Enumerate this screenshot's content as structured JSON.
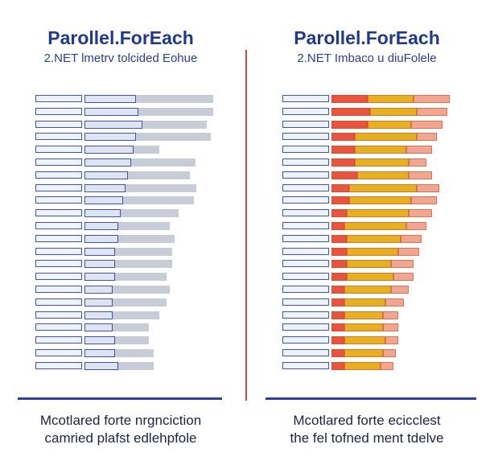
{
  "left": {
    "title": "Parollel.ForEach",
    "subtitle": "2.NET lmetrv tolcided Eohue",
    "caption_line1": "Mcotlared forte nrgnciction",
    "caption_line2": "camried plafst edlehpfole",
    "colors": {
      "outline": "#3b55b0",
      "fill": "#c7ccd6"
    },
    "rows": [
      {
        "navy": 0.4,
        "gray": 0.6
      },
      {
        "navy": 0.42,
        "gray": 0.58
      },
      {
        "navy": 0.45,
        "gray": 0.5
      },
      {
        "navy": 0.4,
        "gray": 0.58
      },
      {
        "navy": 0.38,
        "gray": 0.2
      },
      {
        "navy": 0.36,
        "gray": 0.5
      },
      {
        "navy": 0.34,
        "gray": 0.48
      },
      {
        "navy": 0.32,
        "gray": 0.55
      },
      {
        "navy": 0.3,
        "gray": 0.55
      },
      {
        "navy": 0.28,
        "gray": 0.45
      },
      {
        "navy": 0.26,
        "gray": 0.4
      },
      {
        "navy": 0.26,
        "gray": 0.44
      },
      {
        "navy": 0.24,
        "gray": 0.44
      },
      {
        "navy": 0.24,
        "gray": 0.44
      },
      {
        "navy": 0.24,
        "gray": 0.4
      },
      {
        "navy": 0.22,
        "gray": 0.44
      },
      {
        "navy": 0.22,
        "gray": 0.42
      },
      {
        "navy": 0.22,
        "gray": 0.36
      },
      {
        "navy": 0.22,
        "gray": 0.28
      },
      {
        "navy": 0.24,
        "gray": 0.26
      },
      {
        "navy": 0.24,
        "gray": 0.3
      },
      {
        "navy": 0.26,
        "gray": 0.28
      }
    ]
  },
  "right": {
    "title": "Parollel.ForEach",
    "subtitle": "2.NET Imbaco u diuFolele",
    "caption_line1": "Mcotlared forte ecicclest",
    "caption_line2": "the fel tofned ment tdelve",
    "colors": {
      "outline": "#3b55b0",
      "red": "#e8553f",
      "yellow": "#e6b022",
      "pink": "#f1a68f"
    },
    "rows": [
      {
        "red": 0.28,
        "yellow": 0.36,
        "pink": 0.28
      },
      {
        "red": 0.3,
        "yellow": 0.36,
        "pink": 0.24
      },
      {
        "red": 0.28,
        "yellow": 0.34,
        "pink": 0.24
      },
      {
        "red": 0.18,
        "yellow": 0.48,
        "pink": 0.16
      },
      {
        "red": 0.18,
        "yellow": 0.4,
        "pink": 0.2
      },
      {
        "red": 0.18,
        "yellow": 0.42,
        "pink": 0.14
      },
      {
        "red": 0.2,
        "yellow": 0.4,
        "pink": 0.18
      },
      {
        "red": 0.14,
        "yellow": 0.52,
        "pink": 0.18
      },
      {
        "red": 0.14,
        "yellow": 0.48,
        "pink": 0.2
      },
      {
        "red": 0.12,
        "yellow": 0.48,
        "pink": 0.18
      },
      {
        "red": 0.1,
        "yellow": 0.48,
        "pink": 0.16
      },
      {
        "red": 0.12,
        "yellow": 0.42,
        "pink": 0.16
      },
      {
        "red": 0.12,
        "yellow": 0.4,
        "pink": 0.16
      },
      {
        "red": 0.12,
        "yellow": 0.34,
        "pink": 0.18
      },
      {
        "red": 0.12,
        "yellow": 0.36,
        "pink": 0.16
      },
      {
        "red": 0.1,
        "yellow": 0.36,
        "pink": 0.14
      },
      {
        "red": 0.1,
        "yellow": 0.32,
        "pink": 0.14
      },
      {
        "red": 0.1,
        "yellow": 0.3,
        "pink": 0.12
      },
      {
        "red": 0.1,
        "yellow": 0.3,
        "pink": 0.12
      },
      {
        "red": 0.1,
        "yellow": 0.32,
        "pink": 0.1
      },
      {
        "red": 0.1,
        "yellow": 0.3,
        "pink": 0.1
      },
      {
        "red": 0.1,
        "yellow": 0.28,
        "pink": 0.1
      }
    ]
  }
}
